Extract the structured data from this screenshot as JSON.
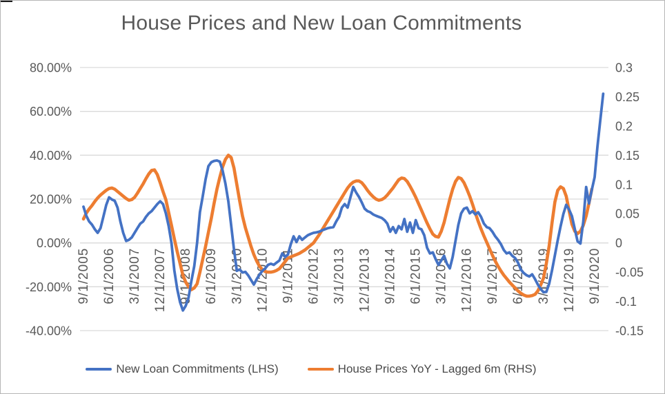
{
  "title": "House Prices and New Loan Commitments",
  "colors": {
    "blue_series": "#4472C4",
    "orange_series": "#ED7D31",
    "gridline": "#d9d9d9",
    "axis_text": "#595959",
    "title_text": "#595959"
  },
  "legend": {
    "items": [
      {
        "label": "New Loan Commitments (LHS)",
        "color": "#4472C4"
      },
      {
        "label": "House Prices YoY - Lagged 6m (RHS)",
        "color": "#ED7D31"
      }
    ]
  },
  "chart_data": {
    "type": "line",
    "title": "House Prices and New Loan Commitments",
    "grid": "horizontal",
    "legend_position": "bottom",
    "x_start": "9/1/2005",
    "x_frequency": "monthly",
    "x_tick_labels": [
      "9/1/2005",
      "6/1/2006",
      "3/1/2007",
      "12/1/2007",
      "9/1/2008",
      "6/1/2009",
      "3/1/2010",
      "12/1/2010",
      "9/1/2011",
      "6/1/2012",
      "3/1/2013",
      "12/1/2013",
      "9/1/2014",
      "6/1/2015",
      "3/1/2016",
      "12/1/2016",
      "9/1/2017",
      "6/1/2018",
      "3/1/2019",
      "12/1/2019",
      "9/1/2020"
    ],
    "x_tick_interval_months": 9,
    "left_axis": {
      "tick_labels": [
        "80.00%",
        "60.00%",
        "40.00%",
        "20.00%",
        "0.00%",
        "-20.00%",
        "-40.00%"
      ],
      "max": 80,
      "min": -40
    },
    "right_axis": {
      "tick_labels": [
        "0.3",
        "0.25",
        "0.2",
        "0.15",
        "0.1",
        "0.05",
        "0",
        "-0.05",
        "-0.1",
        "-0.15"
      ],
      "max": 0.3,
      "min": -0.15
    },
    "series": [
      {
        "name": "New Loan Commitments (LHS)",
        "axis": "left",
        "color": "#4472C4",
        "units": "percent",
        "values": [
          16.5,
          12.4,
          9.8,
          8.3,
          6.2,
          4.6,
          6.7,
          11.9,
          17.2,
          20.8,
          19.8,
          19.2,
          16.1,
          9.8,
          4.6,
          0.9,
          1.4,
          2.5,
          4.6,
          6.7,
          8.8,
          9.8,
          11.9,
          13.5,
          14.5,
          16.1,
          17.7,
          19.0,
          17.7,
          13.5,
          7.7,
          -0.1,
          -12.5,
          -21.0,
          -27.0,
          -30.8,
          -28.7,
          -25.0,
          -17.4,
          -10.6,
          0.0,
          14.0,
          21.3,
          29.0,
          35.0,
          36.8,
          37.4,
          37.6,
          37.1,
          33.0,
          27.0,
          19.0,
          8.0,
          -3.0,
          -12.7,
          -12.1,
          -13.5,
          -13.2,
          -14.8,
          -16.9,
          -19.0,
          -16.5,
          -14.5,
          -12.7,
          -11.6,
          -10.0,
          -9.5,
          -10.0,
          -9.0,
          -8.0,
          -4.8,
          -6.4,
          -5.3,
          -0.6,
          3.0,
          0.4,
          3.0,
          1.4,
          2.5,
          3.5,
          4.1,
          4.6,
          4.8,
          5.1,
          5.7,
          6.2,
          6.7,
          7.0,
          7.2,
          9.8,
          11.9,
          16.1,
          17.7,
          16.1,
          20.8,
          25.5,
          23.0,
          21.0,
          18.5,
          15.6,
          14.5,
          14.0,
          13.0,
          12.4,
          11.9,
          11.4,
          10.4,
          8.8,
          5.1,
          7.2,
          4.6,
          7.7,
          6.2,
          10.9,
          5.1,
          9.3,
          4.6,
          10.4,
          6.7,
          6.2,
          3.5,
          -2.2,
          -4.8,
          -4.3,
          -7.4,
          -10.0,
          -8.0,
          -5.9,
          -9.5,
          -11.6,
          -6.4,
          0.9,
          8.2,
          13.5,
          15.6,
          16.1,
          13.5,
          14.5,
          13.0,
          14.0,
          11.9,
          8.8,
          7.2,
          6.7,
          5.1,
          3.0,
          1.4,
          -0.6,
          -3.2,
          -4.8,
          -4.3,
          -5.9,
          -6.9,
          -9.0,
          -12.1,
          -13.7,
          -14.7,
          -15.3,
          -14.3,
          -16.5,
          -19.0,
          -21.0,
          -22.5,
          -22.3,
          -18.6,
          -12.4,
          -5.6,
          1.2,
          7.5,
          13.2,
          17.4,
          15.2,
          12.2,
          6.4,
          0.7,
          -0.3,
          9.6,
          25.5,
          18.0,
          24.2,
          30.0,
          44.0,
          56.0,
          68.0
        ]
      },
      {
        "name": "House Prices YoY - Lagged 6m (RHS)",
        "axis": "right",
        "color": "#ED7D31",
        "units": "decimal",
        "values": [
          0.041,
          0.051,
          0.058,
          0.064,
          0.071,
          0.077,
          0.082,
          0.086,
          0.09,
          0.093,
          0.094,
          0.092,
          0.088,
          0.084,
          0.08,
          0.076,
          0.073,
          0.074,
          0.078,
          0.085,
          0.093,
          0.101,
          0.11,
          0.118,
          0.124,
          0.125,
          0.117,
          0.103,
          0.088,
          0.074,
          0.052,
          0.03,
          0.007,
          -0.015,
          -0.035,
          -0.055,
          -0.067,
          -0.075,
          -0.08,
          -0.077,
          -0.07,
          -0.05,
          -0.028,
          -0.006,
          0.018,
          0.042,
          0.068,
          0.092,
          0.112,
          0.13,
          0.143,
          0.15,
          0.146,
          0.128,
          0.1,
          0.072,
          0.046,
          0.026,
          0.01,
          -0.006,
          -0.02,
          -0.031,
          -0.04,
          -0.046,
          -0.049,
          -0.05,
          -0.05,
          -0.049,
          -0.047,
          -0.044,
          -0.038,
          -0.032,
          -0.026,
          -0.024,
          -0.022,
          -0.02,
          -0.018,
          -0.015,
          -0.012,
          -0.008,
          -0.004,
          0.0,
          0.007,
          0.014,
          0.022,
          0.03,
          0.038,
          0.046,
          0.054,
          0.062,
          0.07,
          0.078,
          0.086,
          0.094,
          0.1,
          0.104,
          0.106,
          0.106,
          0.103,
          0.097,
          0.09,
          0.084,
          0.079,
          0.075,
          0.073,
          0.074,
          0.077,
          0.082,
          0.088,
          0.094,
          0.101,
          0.108,
          0.111,
          0.11,
          0.105,
          0.097,
          0.088,
          0.078,
          0.067,
          0.056,
          0.045,
          0.034,
          0.024,
          0.015,
          0.011,
          0.01,
          0.02,
          0.035,
          0.055,
          0.075,
          0.092,
          0.105,
          0.112,
          0.11,
          0.103,
          0.092,
          0.08,
          0.066,
          0.051,
          0.037,
          0.024,
          0.012,
          0.001,
          -0.01,
          -0.021,
          -0.031,
          -0.04,
          -0.048,
          -0.055,
          -0.061,
          -0.067,
          -0.072,
          -0.077,
          -0.082,
          -0.086,
          -0.089,
          -0.091,
          -0.091,
          -0.09,
          -0.088,
          -0.082,
          -0.072,
          -0.06,
          -0.035,
          -0.005,
          0.035,
          0.07,
          0.09,
          0.096,
          0.093,
          0.08,
          0.055,
          0.032,
          0.02,
          0.016,
          0.02,
          0.03,
          0.046,
          0.068,
          0.092
        ]
      }
    ]
  }
}
